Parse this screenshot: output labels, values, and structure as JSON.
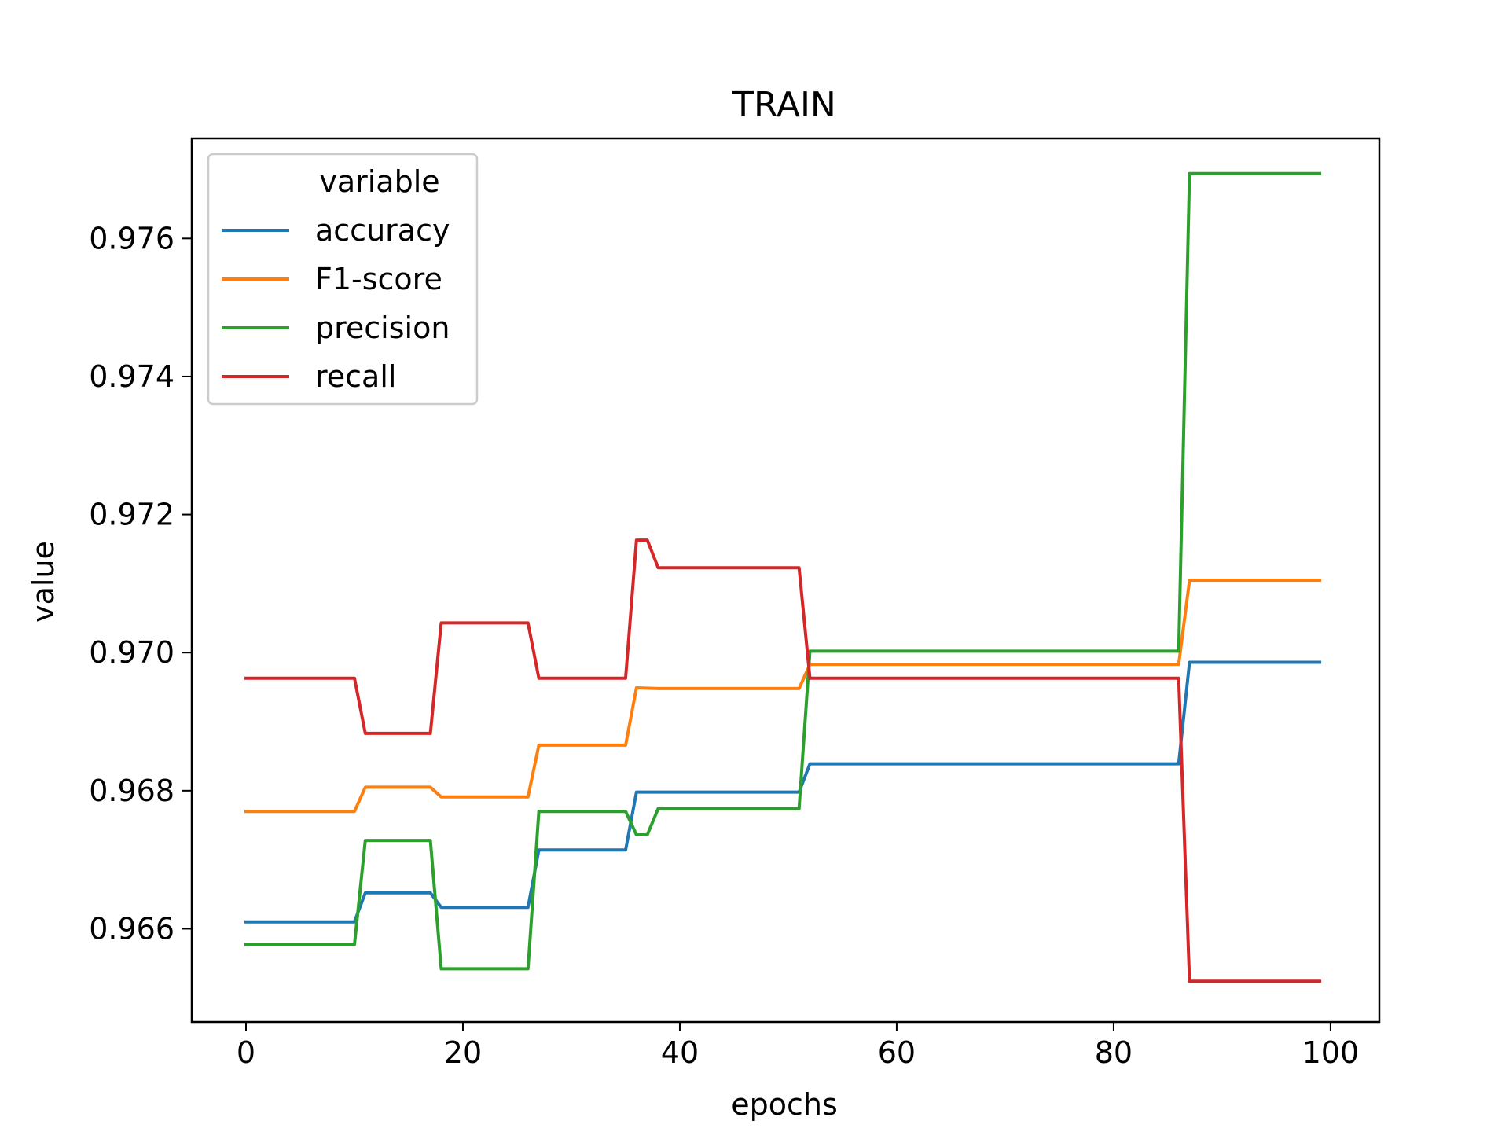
{
  "chart_data": {
    "type": "line",
    "title": "TRAIN",
    "xlabel": "epochs",
    "ylabel": "value",
    "xlim": [
      -5,
      104.5
    ],
    "ylim": [
      0.96465,
      0.97745
    ],
    "xticks": [
      0,
      20,
      40,
      60,
      80,
      100
    ],
    "yticks": [
      0.966,
      0.968,
      0.97,
      0.972,
      0.974,
      0.976
    ],
    "xtick_labels": [
      "0",
      "20",
      "40",
      "60",
      "80",
      "100"
    ],
    "ytick_labels": [
      "0.966",
      "0.968",
      "0.970",
      "0.972",
      "0.974",
      "0.976"
    ],
    "grid": false,
    "legend": {
      "title": "variable",
      "placement": "upper-left"
    },
    "series": [
      {
        "name": "accuracy",
        "color": "#1f77b4",
        "points": [
          [
            0,
            0.9661
          ],
          [
            10,
            0.9661
          ],
          [
            11,
            0.96652
          ],
          [
            17,
            0.96652
          ],
          [
            18,
            0.96631
          ],
          [
            26,
            0.96631
          ],
          [
            27,
            0.96714
          ],
          [
            35,
            0.96714
          ],
          [
            36,
            0.96798
          ],
          [
            51,
            0.96798
          ],
          [
            52,
            0.96839
          ],
          [
            86,
            0.96839
          ],
          [
            87,
            0.96986
          ],
          [
            99,
            0.96986
          ]
        ]
      },
      {
        "name": "F1-score",
        "color": "#ff7f0e",
        "points": [
          [
            0,
            0.9677
          ],
          [
            10,
            0.9677
          ],
          [
            11,
            0.96805
          ],
          [
            17,
            0.96805
          ],
          [
            18,
            0.96791
          ],
          [
            26,
            0.96791
          ],
          [
            27,
            0.96866
          ],
          [
            35,
            0.96866
          ],
          [
            36,
            0.96949
          ],
          [
            38,
            0.96948
          ],
          [
            51,
            0.96948
          ],
          [
            52,
            0.96983
          ],
          [
            86,
            0.96983
          ],
          [
            87,
            0.97105
          ],
          [
            99,
            0.97105
          ]
        ]
      },
      {
        "name": "precision",
        "color": "#2ca02c",
        "points": [
          [
            0,
            0.96577
          ],
          [
            10,
            0.96577
          ],
          [
            11,
            0.96728
          ],
          [
            17,
            0.96728
          ],
          [
            18,
            0.96542
          ],
          [
            26,
            0.96542
          ],
          [
            27,
            0.9677
          ],
          [
            35,
            0.9677
          ],
          [
            36,
            0.96736
          ],
          [
            37,
            0.96736
          ],
          [
            38,
            0.96774
          ],
          [
            51,
            0.96774
          ],
          [
            52,
            0.97002
          ],
          [
            86,
            0.97002
          ],
          [
            87,
            0.97694
          ],
          [
            99,
            0.97694
          ]
        ]
      },
      {
        "name": "recall",
        "color": "#d62728",
        "points": [
          [
            0,
            0.96963
          ],
          [
            10,
            0.96963
          ],
          [
            11,
            0.96883
          ],
          [
            17,
            0.96883
          ],
          [
            18,
            0.97043
          ],
          [
            26,
            0.97043
          ],
          [
            27,
            0.96963
          ],
          [
            35,
            0.96963
          ],
          [
            36,
            0.97163
          ],
          [
            37,
            0.97163
          ],
          [
            38,
            0.97123
          ],
          [
            51,
            0.97123
          ],
          [
            52,
            0.96963
          ],
          [
            86,
            0.96963
          ],
          [
            87,
            0.96524
          ],
          [
            99,
            0.96524
          ]
        ]
      }
    ]
  }
}
